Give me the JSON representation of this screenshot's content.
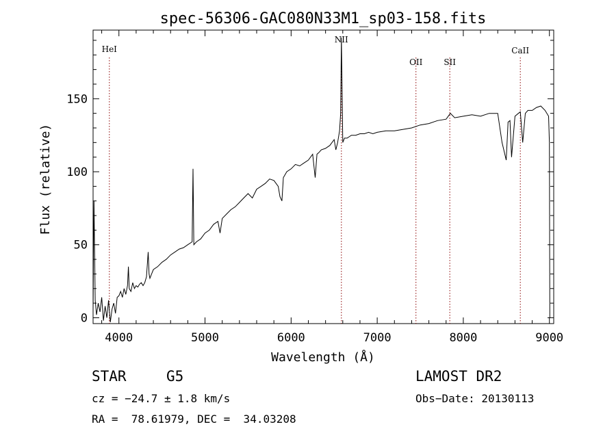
{
  "chart_data": {
    "type": "line",
    "title": "spec-56306-GAC080N33M1_sp03-158.fits",
    "xlabel": "Wavelength (Å)",
    "ylabel": "Flux (relative)",
    "xlim": [
      3700,
      9050
    ],
    "ylim": [
      -4,
      197
    ],
    "xticks": [
      4000,
      5000,
      6000,
      7000,
      8000,
      9000
    ],
    "yticks": [
      0,
      50,
      100,
      150
    ],
    "grid": false,
    "series_color": "#000000",
    "line_color": "#8b0000",
    "lines": [
      {
        "label": "HeI",
        "x": 3889
      },
      {
        "label": "NII",
        "x": 6584
      },
      {
        "label": "OII",
        "x": 7450
      },
      {
        "label": "SII",
        "x": 7843
      },
      {
        "label": "CaII",
        "x": 8662
      }
    ],
    "series": [
      {
        "x": [
          3700,
          3710,
          3725,
          3740,
          3760,
          3780,
          3800,
          3820,
          3840,
          3860,
          3880,
          3900,
          3920,
          3940,
          3960,
          3980,
          4000,
          4020,
          4040,
          4060,
          4080,
          4100,
          4110,
          4120,
          4140,
          4160,
          4180,
          4200,
          4220,
          4240,
          4260,
          4280,
          4300,
          4320,
          4340,
          4350,
          4360,
          4380,
          4400,
          4450,
          4500,
          4550,
          4600,
          4650,
          4700,
          4750,
          4800,
          4850,
          4861,
          4870,
          4900,
          4950,
          5000,
          5050,
          5100,
          5150,
          5175,
          5200,
          5250,
          5300,
          5350,
          5400,
          5450,
          5500,
          5550,
          5600,
          5650,
          5700,
          5750,
          5800,
          5850,
          5870,
          5893,
          5910,
          5950,
          6000,
          6050,
          6100,
          6150,
          6200,
          6250,
          6280,
          6300,
          6320,
          6350,
          6400,
          6450,
          6500,
          6520,
          6540,
          6563,
          6575,
          6584,
          6600,
          6620,
          6650,
          6700,
          6750,
          6800,
          6850,
          6900,
          6950,
          7000,
          7100,
          7200,
          7300,
          7400,
          7500,
          7600,
          7700,
          7800,
          7850,
          7900,
          8000,
          8100,
          8200,
          8300,
          8400,
          8450,
          8498,
          8520,
          8542,
          8560,
          8600,
          8640,
          8662,
          8690,
          8720,
          8750,
          8800,
          8850,
          8900,
          8950,
          8990,
          9000,
          9005
        ],
        "y": [
          5,
          80,
          12,
          2,
          10,
          4,
          14,
          -2,
          8,
          0,
          12,
          -3,
          6,
          10,
          3,
          14,
          15,
          18,
          14,
          20,
          16,
          22,
          35,
          20,
          18,
          24,
          20,
          22,
          21,
          23,
          24,
          22,
          24,
          28,
          45,
          30,
          27,
          30,
          33,
          35,
          38,
          40,
          43,
          45,
          47,
          48,
          50,
          52,
          102,
          50,
          52,
          54,
          58,
          60,
          64,
          66,
          58,
          68,
          71,
          74,
          76,
          79,
          82,
          85,
          82,
          88,
          90,
          92,
          95,
          94,
          90,
          83,
          80,
          96,
          100,
          102,
          105,
          104,
          106,
          108,
          112,
          96,
          112,
          113,
          115,
          116,
          118,
          122,
          115,
          120,
          128,
          140,
          192,
          120,
          123,
          123,
          125,
          125,
          126,
          126,
          127,
          126,
          127,
          128,
          128,
          129,
          130,
          132,
          133,
          135,
          136,
          140,
          137,
          138,
          139,
          138,
          140,
          140,
          120,
          108,
          134,
          135,
          110,
          138,
          140,
          141,
          120,
          140,
          142,
          142,
          144,
          145,
          142,
          138,
          120,
          0
        ]
      }
    ],
    "annotations": {
      "object_class": "STAR",
      "subclass": "G5",
      "survey": "LAMOST DR2",
      "cz": "cz = −24.7 ± 1.8 km/s",
      "obs_date": "Obs−Date: 20130113",
      "coords": "RA =  78.61979, DEC =  34.03208"
    }
  }
}
